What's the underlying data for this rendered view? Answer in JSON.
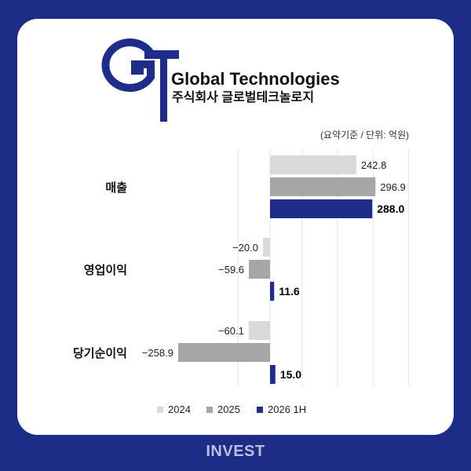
{
  "company": {
    "logo_letters": "GT",
    "name_en": "Global Technologies",
    "name_ko": "주식회사 글로벌테크놀로지"
  },
  "note": "(요약기준 / 단위: 억원)",
  "footer": "INVEST",
  "colors": {
    "s2024": "#d9d9d9",
    "s2025": "#a6a6a6",
    "s2026": "#1f2d8a",
    "background": "#1d2c86"
  },
  "chart_data": {
    "type": "bar",
    "orientation": "horizontal",
    "categories": [
      "매출",
      "영업이익",
      "당기순이익"
    ],
    "series": [
      {
        "name": "2024",
        "values": [
          242.8,
          -20.0,
          -60.1
        ],
        "labels": [
          "242.8",
          "−20.0",
          "−60.1"
        ]
      },
      {
        "name": "2025",
        "values": [
          296.9,
          -59.6,
          -258.9
        ],
        "labels": [
          "296.9",
          "−59.6",
          "−258.9"
        ]
      },
      {
        "name": "2026 1H",
        "values": [
          288.0,
          11.6,
          15.0
        ],
        "labels": [
          "288.0",
          "11.6",
          "15.0"
        ]
      }
    ],
    "legend_position": "bottom",
    "grid": true
  }
}
